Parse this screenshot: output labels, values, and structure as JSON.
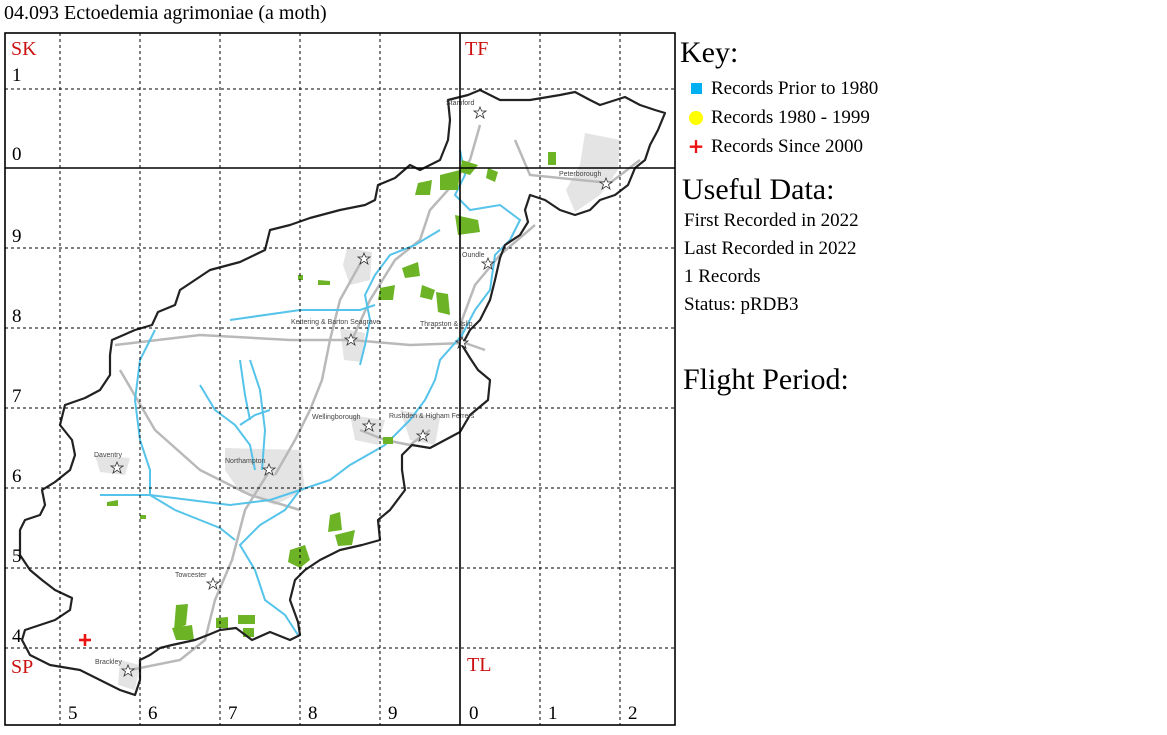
{
  "title": "04.093 Ectoedemia agrimoniae (a moth)",
  "colors": {
    "prior_1980": "#00b0f0",
    "between_1980_1999": "#ffff00",
    "since_2000": "#ee1111",
    "county_outline": "#222222",
    "rivers": "#55c3ea",
    "roads": "#b9b9b9",
    "woodland": "#6cb425",
    "urban": "#e4e4e4",
    "grid_label_red": "#cc1111"
  },
  "map": {
    "square_labels": [
      "SK",
      "TF",
      "SP",
      "TL"
    ],
    "easting_labels": [
      "5",
      "6",
      "7",
      "8",
      "9",
      "0",
      "1",
      "2"
    ],
    "northing_labels": [
      "1",
      "0",
      "9",
      "8",
      "7",
      "6",
      "5",
      "4"
    ],
    "towns": [
      "Stamford",
      "Peterborough",
      "Oundle",
      "Kettering & Barton Seagrave",
      "Thrapston & Islip",
      "Wellingborough",
      "Rushden & Higham Ferrers",
      "Daventry",
      "Northampton",
      "Towcester",
      "Brackley"
    ],
    "record_markers": [
      {
        "category": "since_2000",
        "symbol": "+"
      }
    ]
  },
  "key": {
    "title": "Key:",
    "items": [
      {
        "label": "Records Prior to 1980",
        "shape": "square",
        "color": "#00b0f0"
      },
      {
        "label": "Records 1980 - 1999",
        "shape": "circle",
        "color": "#ffff00"
      },
      {
        "label": "Records Since 2000",
        "shape": "plus",
        "color": "#ee1111"
      }
    ]
  },
  "useful": {
    "title": "Useful Data:",
    "first_recorded": "First Recorded in 2022",
    "last_recorded": "Last Recorded in 2022",
    "records": "1 Records",
    "status": "Status: pRDB3"
  },
  "flight": {
    "title": "Flight Period:"
  }
}
